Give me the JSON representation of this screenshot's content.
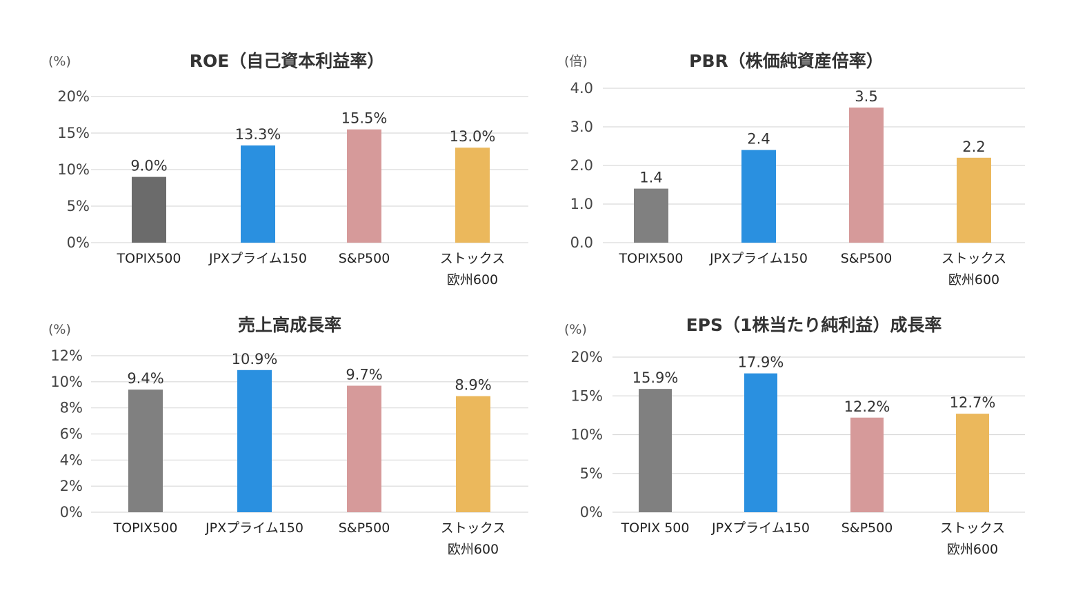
{
  "chart_data": [
    {
      "type": "bar",
      "title": "ROE（自己資本利益率）",
      "unit": "(%)",
      "categories": [
        [
          "TOPIX500"
        ],
        [
          "JPXプライム150"
        ],
        [
          "S&P500"
        ],
        [
          "ストックス",
          "欧州600"
        ]
      ],
      "values": [
        9.0,
        13.3,
        15.5,
        13.0
      ],
      "value_labels": [
        "9.0%",
        "13.3%",
        "15.5%",
        "13.0%"
      ],
      "yticks": [
        "0%",
        "5%",
        "10%",
        "15%",
        "20%"
      ],
      "ylim": [
        0,
        20
      ],
      "ytick_values": [
        0,
        5,
        10,
        15,
        20
      ],
      "colors": [
        "#6b6b6b",
        "#2a90e0",
        "#d69a9a",
        "#ebb85c"
      ],
      "xlabel": "",
      "ylabel": ""
    },
    {
      "type": "bar",
      "title": "PBR（株価純資産倍率）",
      "unit": "(倍)",
      "categories": [
        [
          "TOPIX500"
        ],
        [
          "JPXプライム150"
        ],
        [
          "S&P500"
        ],
        [
          "ストックス",
          "欧州600"
        ]
      ],
      "values": [
        1.4,
        2.4,
        3.5,
        2.2
      ],
      "value_labels": [
        "1.4",
        "2.4",
        "3.5",
        "2.2"
      ],
      "yticks": [
        "0.0",
        "1.0",
        "2.0",
        "3.0",
        "4.0"
      ],
      "ylim": [
        0,
        4
      ],
      "ytick_values": [
        0,
        1,
        2,
        3,
        4
      ],
      "colors": [
        "#808080",
        "#2a90e0",
        "#d69a9a",
        "#ebb85c"
      ],
      "xlabel": "",
      "ylabel": ""
    },
    {
      "type": "bar",
      "title": "売上高成長率",
      "unit": "(%)",
      "categories": [
        [
          "TOPIX500"
        ],
        [
          "JPXプライム150"
        ],
        [
          "S&P500"
        ],
        [
          "ストックス",
          "欧州600"
        ]
      ],
      "values": [
        9.4,
        10.9,
        9.7,
        8.9
      ],
      "value_labels": [
        "9.4%",
        "10.9%",
        "9.7%",
        "8.9%"
      ],
      "yticks": [
        "0%",
        "2%",
        "4%",
        "6%",
        "8%",
        "10%",
        "12%"
      ],
      "ylim": [
        0,
        12
      ],
      "ytick_values": [
        0,
        2,
        4,
        6,
        8,
        10,
        12
      ],
      "colors": [
        "#808080",
        "#2a90e0",
        "#d69a9a",
        "#ebb85c"
      ],
      "xlabel": "",
      "ylabel": ""
    },
    {
      "type": "bar",
      "title": "EPS（1株当たり純利益）成長率",
      "unit": "(%)",
      "categories": [
        [
          "TOPIX 500"
        ],
        [
          "JPXプライム150"
        ],
        [
          "S&P500"
        ],
        [
          "ストックス",
          "欧州600"
        ]
      ],
      "values": [
        15.9,
        17.9,
        12.2,
        12.7
      ],
      "value_labels": [
        "15.9%",
        "17.9%",
        "12.2%",
        "12.7%"
      ],
      "yticks": [
        "0%",
        "5%",
        "10%",
        "15%",
        "20%"
      ],
      "ylim": [
        0,
        20
      ],
      "ytick_values": [
        0,
        5,
        10,
        15,
        20
      ],
      "colors": [
        "#808080",
        "#2a90e0",
        "#d69a9a",
        "#ebb85c"
      ],
      "xlabel": "",
      "ylabel": ""
    }
  ]
}
